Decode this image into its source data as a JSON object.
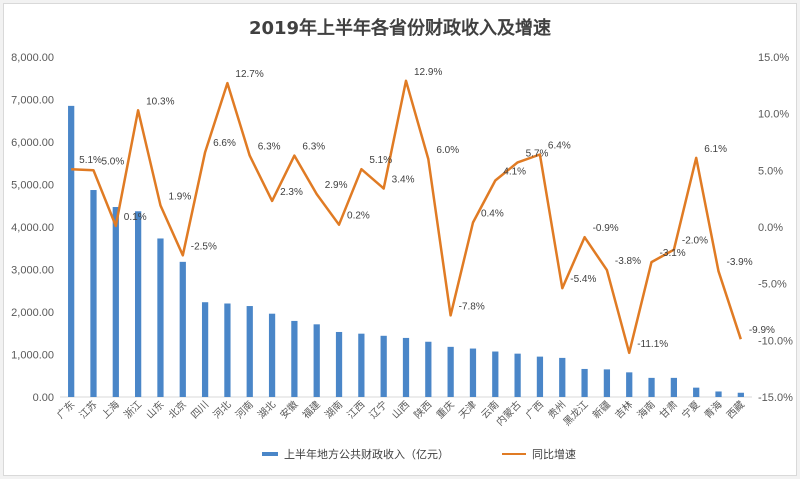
{
  "chart_data": {
    "type": "bar+line",
    "title": "2019年上半年各省份财政收入及增速",
    "categories": [
      "广东",
      "江苏",
      "上海",
      "浙江",
      "山东",
      "北京",
      "四川",
      "河北",
      "河南",
      "湖北",
      "安徽",
      "福建",
      "湖南",
      "江西",
      "辽宁",
      "山西",
      "陕西",
      "重庆",
      "天津",
      "云南",
      "内蒙古",
      "广西",
      "贵州",
      "黑龙江",
      "新疆",
      "吉林",
      "海南",
      "甘肃",
      "宁夏",
      "青海",
      "西藏"
    ],
    "series": [
      {
        "name": "上半年地方公共财政收入（亿元）",
        "type": "bar",
        "axis": "left",
        "color": "#4a86c8",
        "values": [
          6850,
          4870,
          4470,
          4370,
          3730,
          3180,
          2230,
          2200,
          2140,
          1960,
          1790,
          1710,
          1530,
          1490,
          1440,
          1390,
          1300,
          1180,
          1140,
          1070,
          1020,
          950,
          920,
          660,
          650,
          580,
          450,
          450,
          220,
          130,
          100
        ]
      },
      {
        "name": "同比增速",
        "type": "line",
        "axis": "right",
        "color": "#e07b24",
        "values": [
          5.1,
          5.0,
          0.1,
          10.3,
          1.9,
          -2.5,
          6.6,
          12.7,
          6.3,
          2.3,
          6.3,
          2.9,
          0.2,
          5.1,
          3.4,
          12.9,
          6.0,
          -7.8,
          0.4,
          4.1,
          5.7,
          6.4,
          -5.4,
          -0.9,
          -3.8,
          -11.1,
          -3.1,
          -2.0,
          6.1,
          -3.9,
          -9.9
        ],
        "labels": [
          "5.1%",
          "5.0%",
          "0.1%",
          "10.3%",
          "1.9%",
          "-2.5%",
          "6.6%",
          "12.7%",
          "6.3%",
          "2.3%",
          "6.3%",
          "2.9%",
          "0.2%",
          "5.1%",
          "3.4%",
          "12.9%",
          "6.0%",
          "-7.8%",
          "0.4%",
          "4.1%",
          "5.7%",
          "6.4%",
          "-5.4%",
          "-0.9%",
          "-3.8%",
          "-11.1%",
          "-3.1%",
          "-2.0%",
          "6.1%",
          "-3.9%",
          "-9.9%"
        ]
      }
    ],
    "left_axis": {
      "ylim": [
        0,
        8000
      ],
      "ticks": [
        0,
        1000,
        2000,
        3000,
        4000,
        5000,
        6000,
        7000,
        8000
      ],
      "tick_labels": [
        "0.00",
        "1,000.00",
        "2,000.00",
        "3,000.00",
        "4,000.00",
        "5,000.00",
        "6,000.00",
        "7,000.00",
        "8,000.00"
      ]
    },
    "right_axis": {
      "ylim": [
        -15,
        15
      ],
      "ticks": [
        -15,
        -10,
        -5,
        0,
        5,
        10,
        15
      ],
      "tick_labels": [
        "-15.0%",
        "-10.0%",
        "-5.0%",
        "0.0%",
        "5.0%",
        "10.0%",
        "15.0%"
      ]
    },
    "grid": false,
    "legend_position": "bottom"
  }
}
